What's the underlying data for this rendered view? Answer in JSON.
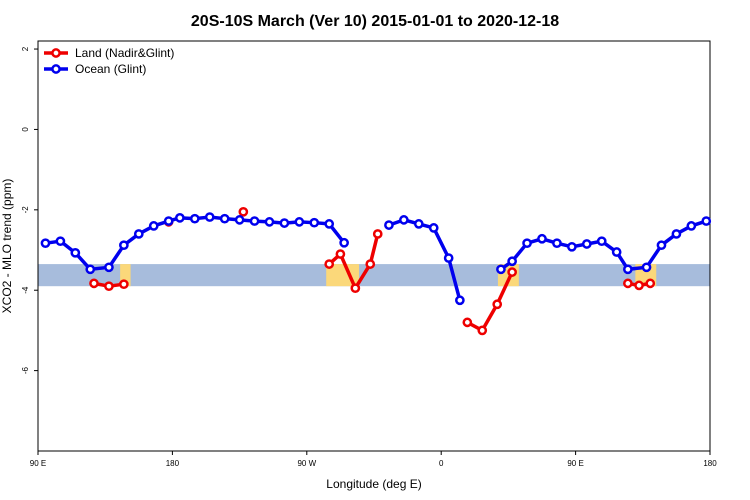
{
  "chart_data": {
    "type": "line",
    "title": "20S-10S March (Ver 10)   2015-01-01 to 2020-12-18",
    "xlabel": "Longitude (deg E)",
    "ylabel": "XCO2 - MLO trend (ppm)",
    "xlim": [
      90,
      540
    ],
    "ylim": [
      -8,
      2.2
    ],
    "x_ticks": [
      {
        "value": 90,
        "label": "90 E"
      },
      {
        "value": 180,
        "label": "180"
      },
      {
        "value": 270,
        "label": "90 W"
      },
      {
        "value": 360,
        "label": "0"
      },
      {
        "value": 450,
        "label": "90 E"
      },
      {
        "value": 540,
        "label": "180"
      }
    ],
    "y_ticks": [
      {
        "value": 2,
        "label": "2"
      },
      {
        "value": 0,
        "label": "0"
      },
      {
        "value": -2,
        "label": "-2"
      },
      {
        "value": -4,
        "label": "-4"
      },
      {
        "value": -6,
        "label": "-6"
      }
    ],
    "legend_position": "top-left",
    "band": {
      "y_range": [
        -3.9,
        -3.35
      ],
      "ocean_color": "#a7bcdc",
      "land_color": "#fbd87a"
    },
    "land_regions": [
      [
        145,
        152
      ],
      [
        283,
        305
      ],
      [
        398,
        412
      ],
      [
        490,
        504
      ]
    ],
    "series": [
      {
        "name": "Land (Nadir&Glint)",
        "color": "#ee0000",
        "segments": [
          [
            [
              127.5,
              -3.83
            ],
            [
              137.5,
              -3.9
            ],
            [
              147.5,
              -3.85
            ]
          ],
          [
            [
              177.5,
              -2.3
            ]
          ],
          [
            [
              227.5,
              -2.05
            ]
          ],
          [
            [
              285,
              -3.35
            ],
            [
              292.5,
              -3.1
            ],
            [
              302.5,
              -3.95
            ],
            [
              312.5,
              -3.35
            ],
            [
              317.5,
              -2.6
            ]
          ],
          [
            [
              377.5,
              -4.8
            ],
            [
              387.5,
              -5.0
            ],
            [
              397.5,
              -4.35
            ],
            [
              407.5,
              -3.55
            ]
          ],
          [
            [
              485,
              -3.83
            ],
            [
              492.5,
              -3.88
            ],
            [
              500,
              -3.83
            ]
          ]
        ]
      },
      {
        "name": "Ocean (Glint)",
        "color": "#0000ee",
        "segments": [
          [
            [
              95,
              -2.83
            ],
            [
              105,
              -2.78
            ],
            [
              115,
              -3.07
            ],
            [
              125,
              -3.48
            ],
            [
              137.5,
              -3.43
            ],
            [
              147.5,
              -2.88
            ],
            [
              157.5,
              -2.6
            ],
            [
              167.5,
              -2.4
            ],
            [
              177.5,
              -2.28
            ],
            [
              185,
              -2.2
            ],
            [
              195,
              -2.22
            ],
            [
              205,
              -2.18
            ],
            [
              215,
              -2.22
            ],
            [
              225,
              -2.25
            ],
            [
              235,
              -2.28
            ],
            [
              245,
              -2.3
            ],
            [
              255,
              -2.33
            ],
            [
              265,
              -2.3
            ],
            [
              275,
              -2.32
            ],
            [
              285,
              -2.35
            ],
            [
              295,
              -2.82
            ]
          ],
          [
            [
              325,
              -2.38
            ],
            [
              335,
              -2.25
            ],
            [
              345,
              -2.35
            ],
            [
              355,
              -2.45
            ],
            [
              365,
              -3.2
            ],
            [
              372.5,
              -4.25
            ]
          ],
          [
            [
              400,
              -3.48
            ],
            [
              407.5,
              -3.28
            ],
            [
              417.5,
              -2.83
            ],
            [
              427.5,
              -2.72
            ],
            [
              437.5,
              -2.83
            ],
            [
              447.5,
              -2.92
            ],
            [
              457.5,
              -2.85
            ],
            [
              467.5,
              -2.78
            ],
            [
              477.5,
              -3.05
            ],
            [
              485,
              -3.48
            ],
            [
              497.5,
              -3.43
            ],
            [
              507.5,
              -2.88
            ],
            [
              517.5,
              -2.6
            ],
            [
              527.5,
              -2.4
            ],
            [
              537.5,
              -2.28
            ]
          ]
        ]
      }
    ]
  }
}
